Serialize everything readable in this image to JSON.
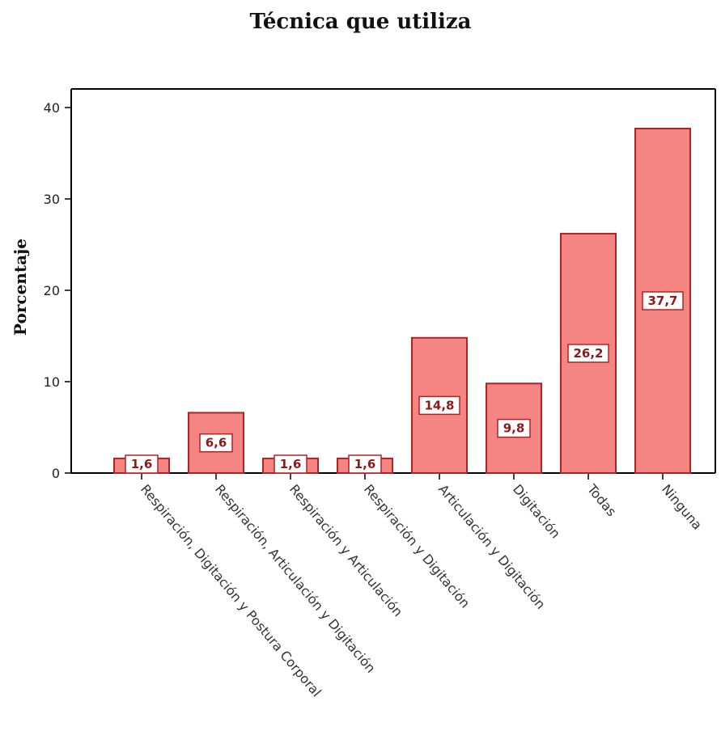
{
  "chart_data": {
    "type": "bar",
    "title": "Técnica que utiliza",
    "ylabel": "Porcentaje",
    "xlabel": "",
    "ylim": [
      0,
      42
    ],
    "yticks": [
      0,
      10,
      20,
      30,
      40
    ],
    "categories": [
      "Respiración, Digitación y Postura Corporal",
      "Respiración, Articulación y Digitación",
      "Respiración y Articulación",
      "Respiración y Digitación",
      "Articulación y Digitación",
      "Digitación",
      "Todas",
      "Ninguna"
    ],
    "values": [
      1.6,
      6.6,
      1.6,
      1.6,
      14.8,
      9.8,
      26.2,
      37.7
    ],
    "data_labels": [
      "1,6",
      "6,6",
      "1,6",
      "1,6",
      "14,8",
      "9,8",
      "26,2",
      "37,7"
    ],
    "bar_color": "#f48583",
    "bar_edge_color": "#b22222",
    "label_color": "#8b1a1a",
    "grid": false,
    "legend": "none"
  }
}
